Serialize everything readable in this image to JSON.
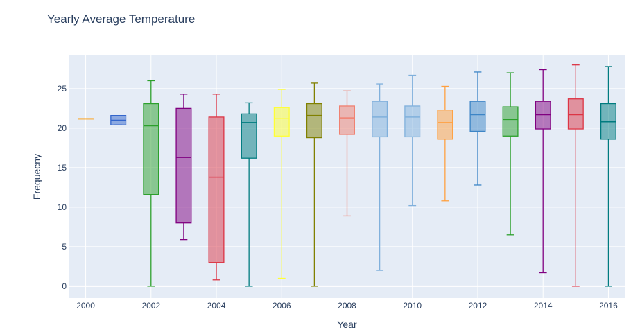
{
  "chart_data": {
    "type": "box",
    "title": "Yearly Average Temperature",
    "xlabel": "Year",
    "ylabel": "Frequecny",
    "x_ticks": [
      "2000",
      "2002",
      "2004",
      "2006",
      "2008",
      "2010",
      "2012",
      "2014",
      "2016"
    ],
    "y_ticks": [
      "0",
      "5",
      "10",
      "15",
      "20",
      "25"
    ],
    "ylim": [
      -1.5,
      29.2
    ],
    "xlim": [
      1999.5,
      2016.5
    ],
    "grid": true,
    "legend": "none",
    "series": [
      {
        "x": 2000,
        "min": 21.2,
        "q1": 21.2,
        "median": 21.2,
        "q3": 21.2,
        "max": 21.2,
        "color": "#ff9900"
      },
      {
        "x": 2001,
        "min": 20.4,
        "q1": 20.4,
        "median": 21.0,
        "q3": 21.6,
        "max": 21.6,
        "color": "#3366cc"
      },
      {
        "x": 2002,
        "min": 0.0,
        "q1": 11.6,
        "median": 20.3,
        "q3": 23.1,
        "max": 26.0,
        "color": "#2ca02c"
      },
      {
        "x": 2003,
        "min": 5.9,
        "q1": 8.0,
        "median": 16.3,
        "q3": 22.5,
        "max": 24.3,
        "color": "#800080"
      },
      {
        "x": 2004,
        "min": 0.8,
        "q1": 3.0,
        "median": 13.8,
        "q3": 21.4,
        "max": 24.3,
        "color": "#dc3545"
      },
      {
        "x": 2005,
        "min": 0.0,
        "q1": 16.2,
        "median": 20.7,
        "q3": 21.8,
        "max": 23.2,
        "color": "#007b7f"
      },
      {
        "x": 2006,
        "min": 1.0,
        "q1": 19.0,
        "median": 21.2,
        "q3": 22.6,
        "max": 24.9,
        "color": "#ffff33"
      },
      {
        "x": 2007,
        "min": 0.0,
        "q1": 18.8,
        "median": 21.6,
        "q3": 23.1,
        "max": 25.7,
        "color": "#808000"
      },
      {
        "x": 2008,
        "min": 8.9,
        "q1": 19.2,
        "median": 21.3,
        "q3": 22.8,
        "max": 24.7,
        "color": "#f08070"
      },
      {
        "x": 2009,
        "min": 2.0,
        "q1": 18.9,
        "median": 21.4,
        "q3": 23.4,
        "max": 25.6,
        "color": "#80b0dc"
      },
      {
        "x": 2010,
        "min": 10.2,
        "q1": 18.9,
        "median": 21.4,
        "q3": 22.8,
        "max": 26.7,
        "color": "#80b0dc"
      },
      {
        "x": 2011,
        "min": 10.8,
        "q1": 18.6,
        "median": 20.7,
        "q3": 22.3,
        "max": 25.3,
        "color": "#ffa040"
      },
      {
        "x": 2012,
        "min": 12.8,
        "q1": 19.6,
        "median": 21.7,
        "q3": 23.4,
        "max": 27.1,
        "color": "#3d85c6"
      },
      {
        "x": 2013,
        "min": 6.5,
        "q1": 19.0,
        "median": 21.1,
        "q3": 22.7,
        "max": 27.0,
        "color": "#2ca02c"
      },
      {
        "x": 2014,
        "min": 1.7,
        "q1": 19.9,
        "median": 21.7,
        "q3": 23.4,
        "max": 27.4,
        "color": "#800080"
      },
      {
        "x": 2015,
        "min": 0.0,
        "q1": 19.9,
        "median": 21.7,
        "q3": 23.7,
        "max": 28.0,
        "color": "#dc3545"
      },
      {
        "x": 2016,
        "min": 0.0,
        "q1": 18.6,
        "median": 20.8,
        "q3": 23.1,
        "max": 27.8,
        "color": "#007b7f"
      }
    ]
  }
}
